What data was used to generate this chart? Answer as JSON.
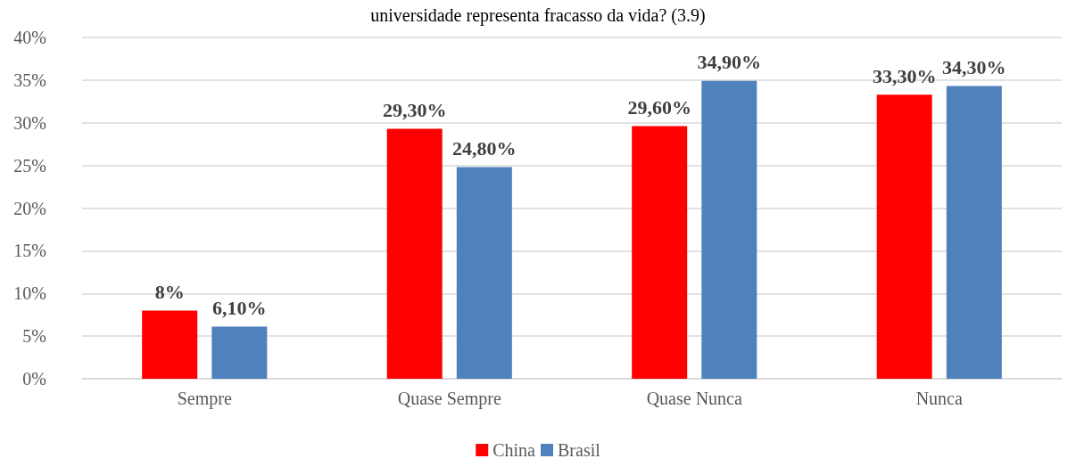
{
  "chart_data": {
    "type": "bar",
    "title": "universidade representa fracasso da vida? (3.9)",
    "categories": [
      "Sempre",
      "Quase Sempre",
      "Quase Nunca",
      "Nunca"
    ],
    "series": [
      {
        "name": "China",
        "color": "#ff0000",
        "values": [
          8,
          29.3,
          29.6,
          33.3
        ],
        "value_labels": [
          "8%",
          "29,30%",
          "29,60%",
          "33,30%"
        ]
      },
      {
        "name": "Brasil",
        "color": "#4f81bd",
        "values": [
          6.1,
          24.8,
          34.9,
          34.3
        ],
        "value_labels": [
          "6,10%",
          "24,80%",
          "34,90%",
          "34,30%"
        ]
      }
    ],
    "ylim": [
      0,
      40
    ],
    "yticks": [
      {
        "value": 0,
        "label": "0%"
      },
      {
        "value": 5,
        "label": "5%"
      },
      {
        "value": 10,
        "label": "10%"
      },
      {
        "value": 15,
        "label": "15%"
      },
      {
        "value": 20,
        "label": "20%"
      },
      {
        "value": 25,
        "label": "25%"
      },
      {
        "value": 30,
        "label": "30%"
      },
      {
        "value": 35,
        "label": "35%"
      },
      {
        "value": 40,
        "label": "40%"
      }
    ],
    "grid": "y",
    "legend": "bottom"
  }
}
